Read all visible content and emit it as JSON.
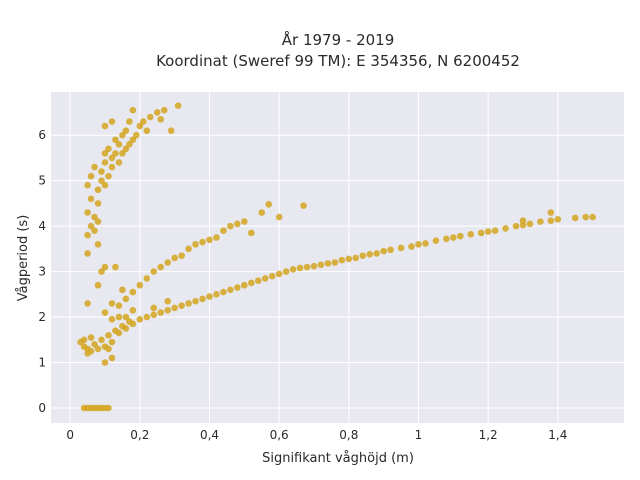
{
  "chart_data": {
    "type": "scatter",
    "title_line1": "År 1979 - 2019",
    "title_line2": "Koordinat (Sweref 99 TM): E 354356, N 6200452",
    "xlabel": "Signifikant våghöjd (m)",
    "ylabel": "Vågperiod (s)",
    "xlim": [
      -0.055,
      1.59
    ],
    "ylim": [
      -0.33,
      6.95
    ],
    "xticks": [
      0,
      0.2,
      0.4,
      0.6,
      0.8,
      1,
      1.2,
      1.4
    ],
    "xtick_labels": [
      "0",
      "0,2",
      "0,4",
      "0,6",
      "0,8",
      "1",
      "1,2",
      "1,4"
    ],
    "yticks": [
      0,
      1,
      2,
      3,
      4,
      5,
      6
    ],
    "ytick_labels": [
      "0",
      "1",
      "2",
      "3",
      "4",
      "5",
      "6"
    ],
    "grid": true,
    "colors": {
      "plot_bg": "#e8e8f0",
      "grid": "#ffffff",
      "marker": "#d4a520"
    },
    "series": [
      {
        "values": [
          [
            0.04,
            0
          ],
          [
            0.05,
            0
          ],
          [
            0.06,
            0
          ],
          [
            0.07,
            0
          ],
          [
            0.08,
            0
          ],
          [
            0.09,
            0
          ],
          [
            0.1,
            0
          ],
          [
            0.11,
            0
          ],
          [
            0.03,
            1.45
          ],
          [
            0.04,
            1.5
          ],
          [
            0.05,
            1.3
          ],
          [
            0.06,
            1.55
          ],
          [
            0.05,
            1.2
          ],
          [
            0.04,
            1.35
          ],
          [
            0.07,
            1.4
          ],
          [
            0.06,
            1.25
          ],
          [
            0.08,
            1.3
          ],
          [
            0.09,
            1.5
          ],
          [
            0.1,
            1.35
          ],
          [
            0.11,
            1.6
          ],
          [
            0.12,
            1.45
          ],
          [
            0.13,
            1.7
          ],
          [
            0.14,
            1.65
          ],
          [
            0.15,
            1.8
          ],
          [
            0.16,
            1.75
          ],
          [
            0.17,
            1.9
          ],
          [
            0.18,
            1.85
          ],
          [
            0.2,
            1.95
          ],
          [
            0.22,
            2.0
          ],
          [
            0.24,
            2.05
          ],
          [
            0.26,
            2.1
          ],
          [
            0.28,
            2.15
          ],
          [
            0.3,
            2.2
          ],
          [
            0.32,
            2.25
          ],
          [
            0.34,
            2.3
          ],
          [
            0.36,
            2.35
          ],
          [
            0.38,
            2.4
          ],
          [
            0.4,
            2.45
          ],
          [
            0.42,
            2.5
          ],
          [
            0.44,
            2.55
          ],
          [
            0.46,
            2.6
          ],
          [
            0.48,
            2.65
          ],
          [
            0.5,
            2.7
          ],
          [
            0.52,
            2.75
          ],
          [
            0.54,
            2.8
          ],
          [
            0.56,
            2.85
          ],
          [
            0.58,
            2.9
          ],
          [
            0.6,
            2.95
          ],
          [
            0.62,
            3.0
          ],
          [
            0.64,
            3.05
          ],
          [
            0.66,
            3.08
          ],
          [
            0.68,
            3.1
          ],
          [
            0.7,
            3.12
          ],
          [
            0.72,
            3.15
          ],
          [
            0.74,
            3.18
          ],
          [
            0.76,
            3.2
          ],
          [
            0.78,
            3.25
          ],
          [
            0.8,
            3.28
          ],
          [
            0.82,
            3.3
          ],
          [
            0.84,
            3.35
          ],
          [
            0.86,
            3.38
          ],
          [
            0.88,
            3.4
          ],
          [
            0.9,
            3.45
          ],
          [
            0.92,
            3.48
          ],
          [
            0.95,
            3.52
          ],
          [
            0.98,
            3.55
          ],
          [
            1.0,
            3.6
          ],
          [
            1.02,
            3.62
          ],
          [
            1.05,
            3.68
          ],
          [
            1.08,
            3.72
          ],
          [
            1.1,
            3.75
          ],
          [
            1.12,
            3.78
          ],
          [
            1.15,
            3.82
          ],
          [
            1.18,
            3.85
          ],
          [
            1.2,
            3.88
          ],
          [
            1.22,
            3.9
          ],
          [
            1.25,
            3.95
          ],
          [
            1.28,
            4.0
          ],
          [
            1.3,
            4.02
          ],
          [
            1.32,
            4.05
          ],
          [
            1.35,
            4.1
          ],
          [
            1.38,
            4.12
          ],
          [
            1.4,
            4.15
          ],
          [
            1.45,
            4.18
          ],
          [
            1.48,
            4.2
          ],
          [
            1.5,
            4.2
          ],
          [
            1.38,
            4.3
          ],
          [
            1.3,
            4.12
          ],
          [
            0.1,
            2.1
          ],
          [
            0.12,
            2.3
          ],
          [
            0.14,
            2.25
          ],
          [
            0.16,
            2.4
          ],
          [
            0.18,
            2.55
          ],
          [
            0.2,
            2.7
          ],
          [
            0.22,
            2.85
          ],
          [
            0.24,
            3.0
          ],
          [
            0.26,
            3.1
          ],
          [
            0.28,
            3.2
          ],
          [
            0.3,
            3.3
          ],
          [
            0.32,
            3.35
          ],
          [
            0.34,
            3.5
          ],
          [
            0.36,
            3.6
          ],
          [
            0.38,
            3.65
          ],
          [
            0.4,
            3.7
          ],
          [
            0.42,
            3.75
          ],
          [
            0.44,
            3.9
          ],
          [
            0.46,
            4.0
          ],
          [
            0.48,
            4.05
          ],
          [
            0.5,
            4.1
          ],
          [
            0.52,
            3.85
          ],
          [
            0.55,
            4.3
          ],
          [
            0.57,
            4.48
          ],
          [
            0.6,
            4.2
          ],
          [
            0.67,
            4.45
          ],
          [
            0.18,
            2.15
          ],
          [
            0.16,
            2.0
          ],
          [
            0.14,
            2.0
          ],
          [
            0.12,
            1.95
          ],
          [
            0.24,
            2.2
          ],
          [
            0.28,
            2.35
          ],
          [
            0.05,
            3.4
          ],
          [
            0.05,
            3.8
          ],
          [
            0.06,
            4.0
          ],
          [
            0.05,
            4.3
          ],
          [
            0.06,
            4.6
          ],
          [
            0.05,
            4.9
          ],
          [
            0.06,
            5.1
          ],
          [
            0.07,
            5.3
          ],
          [
            0.07,
            4.2
          ],
          [
            0.08,
            4.5
          ],
          [
            0.08,
            4.8
          ],
          [
            0.09,
            5.0
          ],
          [
            0.09,
            5.2
          ],
          [
            0.1,
            5.4
          ],
          [
            0.1,
            5.6
          ],
          [
            0.1,
            4.9
          ],
          [
            0.11,
            5.1
          ],
          [
            0.11,
            5.7
          ],
          [
            0.12,
            5.3
          ],
          [
            0.12,
            5.5
          ],
          [
            0.13,
            5.6
          ],
          [
            0.13,
            5.9
          ],
          [
            0.14,
            5.4
          ],
          [
            0.14,
            5.8
          ],
          [
            0.15,
            5.6
          ],
          [
            0.15,
            6.0
          ],
          [
            0.16,
            5.7
          ],
          [
            0.16,
            6.1
          ],
          [
            0.17,
            5.8
          ],
          [
            0.17,
            6.3
          ],
          [
            0.18,
            5.9
          ],
          [
            0.19,
            6.0
          ],
          [
            0.2,
            6.2
          ],
          [
            0.21,
            6.3
          ],
          [
            0.22,
            6.1
          ],
          [
            0.23,
            6.4
          ],
          [
            0.25,
            6.5
          ],
          [
            0.18,
            6.55
          ],
          [
            0.12,
            6.3
          ],
          [
            0.1,
            6.2
          ],
          [
            0.27,
            6.55
          ],
          [
            0.31,
            6.65
          ],
          [
            0.29,
            6.1
          ],
          [
            0.26,
            6.35
          ],
          [
            0.1,
            3.1
          ],
          [
            0.08,
            3.6
          ],
          [
            0.07,
            3.9
          ],
          [
            0.08,
            4.1
          ],
          [
            0.05,
            2.3
          ],
          [
            0.08,
            2.7
          ],
          [
            0.09,
            3.0
          ],
          [
            0.13,
            3.1
          ],
          [
            0.1,
            1.0
          ],
          [
            0.12,
            1.1
          ],
          [
            0.11,
            1.3
          ],
          [
            0.15,
            2.6
          ]
        ]
      }
    ]
  }
}
